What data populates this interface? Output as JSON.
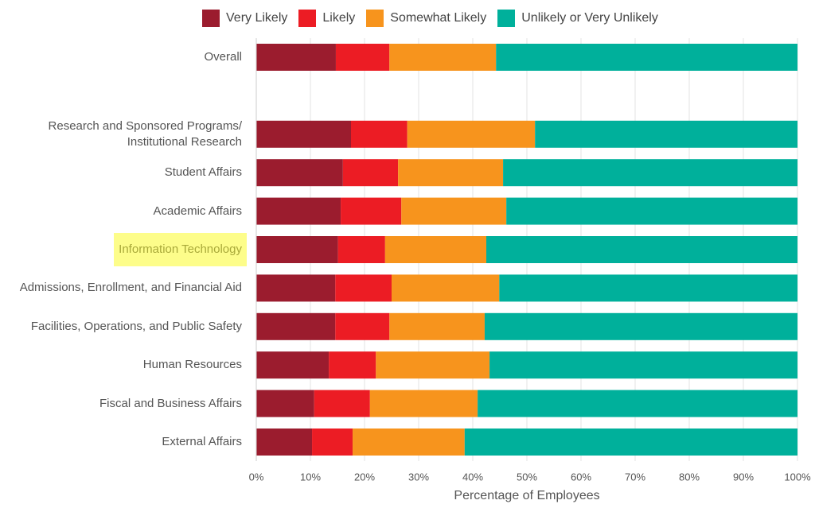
{
  "chart_data": {
    "type": "stacked-barh",
    "categories": [
      "Overall",
      null,
      "Research and Sponsored Programs/\nInstitutional Research",
      "Student Affairs",
      "Academic Affairs",
      "Information Technology",
      "Admissions, Enrollment, and Financial Aid",
      "Facilities, Operations, and Public Safety",
      "Human Resources",
      "Fiscal and Business Affairs",
      "External Affairs"
    ],
    "highlight_index": 5,
    "series": [
      {
        "name": "Very Likely",
        "color": "#9b1c2e",
        "values": [
          14.7,
          null,
          17.5,
          16.0,
          15.6,
          15.1,
          14.6,
          14.6,
          13.4,
          10.7,
          10.3
        ]
      },
      {
        "name": "Likely",
        "color": "#ec1c24",
        "values": [
          9.9,
          null,
          10.4,
          10.2,
          11.2,
          8.7,
          10.4,
          10.0,
          8.7,
          10.3,
          7.5
        ]
      },
      {
        "name": "Somewhat Likely",
        "color": "#f7941d",
        "values": [
          19.7,
          null,
          23.6,
          19.4,
          19.4,
          18.7,
          19.9,
          17.6,
          21.0,
          19.9,
          20.7
        ]
      },
      {
        "name": "Unlikely or Very Unlikely",
        "color": "#00b09b",
        "values": [
          55.7,
          null,
          48.5,
          54.4,
          53.8,
          57.5,
          55.1,
          57.8,
          56.9,
          59.1,
          61.5
        ]
      }
    ],
    "xlabel": "Percentage of Employees",
    "xlim": [
      0,
      100
    ],
    "xticks": [
      {
        "value": 0,
        "label": "0%"
      },
      {
        "value": 10,
        "label": "10%"
      },
      {
        "value": 20,
        "label": "20%"
      },
      {
        "value": 30,
        "label": "30%"
      },
      {
        "value": 40,
        "label": "40%"
      },
      {
        "value": 50,
        "label": "50%"
      },
      {
        "value": 60,
        "label": "60%"
      },
      {
        "value": 70,
        "label": "70%"
      },
      {
        "value": 80,
        "label": "80%"
      },
      {
        "value": 90,
        "label": "90%"
      },
      {
        "value": 100,
        "label": "100%"
      }
    ],
    "grid": true,
    "legend": "top"
  }
}
